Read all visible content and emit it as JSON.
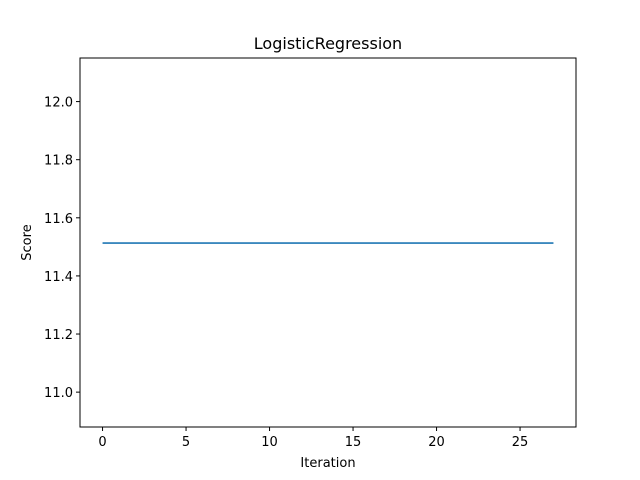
{
  "chart_data": {
    "type": "line",
    "title": "LogisticRegression",
    "xlabel": "Iteration",
    "ylabel": "Score",
    "xlim": [
      -1.35,
      28.35
    ],
    "ylim": [
      10.88,
      12.15
    ],
    "xticks": [
      0,
      5,
      10,
      15,
      20,
      25
    ],
    "xtick_labels": [
      "0",
      "5",
      "10",
      "15",
      "20",
      "25"
    ],
    "yticks": [
      11.0,
      11.2,
      11.4,
      11.6,
      11.8,
      12.0
    ],
    "ytick_labels": [
      "11.0",
      "11.2",
      "11.4",
      "11.6",
      "11.8",
      "12.0"
    ],
    "grid": false,
    "series": [
      {
        "color": "#1f77b4",
        "x": [
          0,
          27
        ],
        "y": [
          11.513,
          11.513
        ]
      }
    ]
  }
}
